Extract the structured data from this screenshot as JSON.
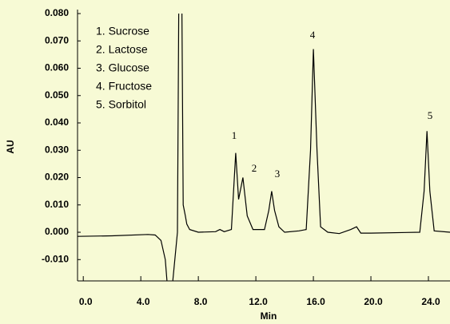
{
  "chart_data": {
    "type": "line",
    "xlabel": "Min",
    "ylabel": "AU",
    "annotations": [
      "1. Sucrose",
      "2. Lactose",
      "3. Glucose",
      "4. Fructose",
      "5. Sorbitol"
    ],
    "peak_labels": [
      "1",
      "2",
      "3",
      "4",
      "5"
    ],
    "color": "#000000",
    "x": [
      -0.4,
      2.0,
      4.5,
      5.0,
      5.4,
      5.7,
      6.0,
      6.55,
      6.65,
      6.85,
      6.95,
      7.1,
      7.2,
      7.4,
      8.0,
      9.2,
      9.5,
      9.8,
      10.3,
      10.6,
      10.8,
      11.1,
      11.4,
      11.8,
      12.6,
      12.9,
      13.1,
      13.3,
      13.6,
      14.0,
      15.0,
      15.5,
      15.8,
      16.0,
      16.25,
      16.5,
      17.0,
      17.8,
      18.6,
      19.0,
      19.3,
      20.0,
      23.4,
      23.7,
      23.9,
      24.1,
      24.4,
      25.5
    ],
    "y": [
      -0.0015,
      -0.0013,
      -0.0008,
      -0.001,
      -0.003,
      -0.01,
      -0.03,
      0.0,
      0.09,
      0.09,
      0.01,
      0.006,
      0.003,
      0.001,
      0.0,
      0.0002,
      0.001,
      0.0002,
      0.001,
      0.029,
      0.012,
      0.02,
      0.006,
      0.001,
      0.001,
      0.008,
      0.015,
      0.008,
      0.002,
      0.0,
      0.0005,
      0.001,
      0.03,
      0.067,
      0.03,
      0.002,
      0.0,
      -0.0005,
      0.001,
      0.002,
      -0.0003,
      -0.0003,
      0.0,
      0.015,
      0.037,
      0.015,
      0.0005,
      0.0
    ],
    "xlim": [
      -0.4,
      25.5
    ],
    "ylim": [
      -0.0178,
      0.08
    ],
    "xticks": [
      {
        "value": 0,
        "label": "0.0"
      },
      {
        "value": 4,
        "label": "4.0"
      },
      {
        "value": 8,
        "label": "8.0"
      },
      {
        "value": 12,
        "label": "12.0"
      },
      {
        "value": 16,
        "label": "16.0"
      },
      {
        "value": 20,
        "label": "20.0"
      },
      {
        "value": 24,
        "label": "24.0"
      }
    ],
    "yticks": [
      {
        "value": -0.01,
        "label": "-0.010"
      },
      {
        "value": 0,
        "label": "0.000"
      },
      {
        "value": 0.01,
        "label": "0.010"
      },
      {
        "value": 0.02,
        "label": "0.020"
      },
      {
        "value": 0.03,
        "label": "0.030"
      },
      {
        "value": 0.04,
        "label": "0.040"
      },
      {
        "value": 0.05,
        "label": "0.050"
      },
      {
        "value": 0.06,
        "label": "0.060"
      },
      {
        "value": 0.07,
        "label": "0.070"
      },
      {
        "value": 0.08,
        "label": "0.080"
      }
    ]
  }
}
